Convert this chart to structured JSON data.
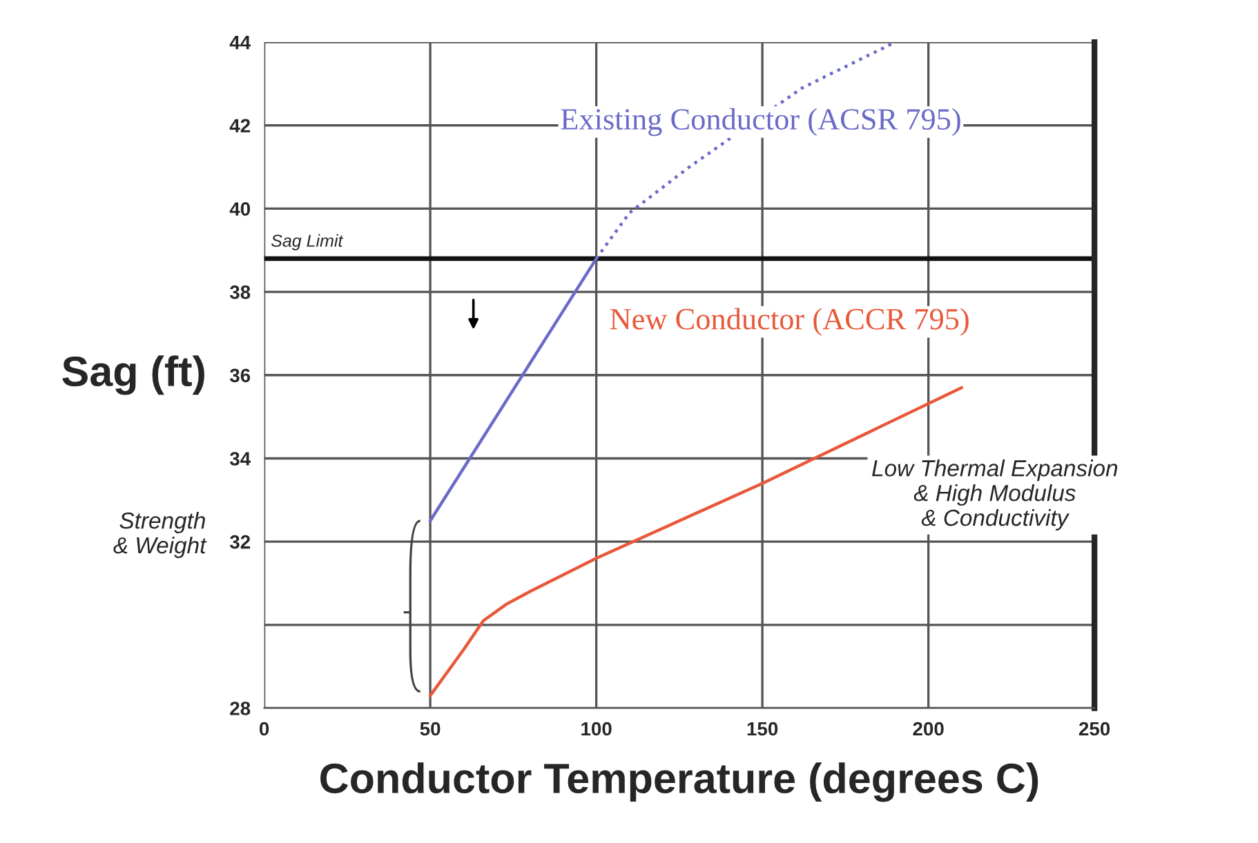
{
  "chart_data": {
    "type": "line",
    "xlabel": "Conductor Temperature (degrees C)",
    "ylabel": "Sag (ft)",
    "series": [
      {
        "name": "Existing Conductor (ACSR 795)",
        "color": "#6a6ac8",
        "x": [
          50,
          100
        ],
        "values": [
          32.5,
          38.8
        ],
        "line_style": "solid"
      },
      {
        "color": "#6a6ac8",
        "x": [
          100,
          110,
          128,
          162,
          190
        ],
        "values": [
          38.8,
          39.9,
          41.0,
          42.9,
          44.0
        ],
        "line_style": "dotted"
      },
      {
        "name": "New Conductor (ACCR 795)",
        "color": "#e8583a",
        "x": [
          50,
          60,
          66,
          73,
          80,
          100,
          150,
          210
        ],
        "values": [
          28.3,
          29.4,
          30.1,
          30.5,
          30.8,
          31.6,
          33.4,
          35.7
        ],
        "line_style": "solid"
      }
    ],
    "xlim": [
      0,
      250
    ],
    "xticks": [
      0,
      50,
      100,
      150,
      200,
      250
    ],
    "ylim": [
      28,
      44
    ],
    "yticks": [
      28,
      {
        "value": 30,
        "label": null
      },
      32,
      34,
      36,
      38,
      40,
      42,
      44
    ],
    "ref_lines": [
      {
        "axis": "y",
        "value": 38.8,
        "label": "Sag Limit",
        "color": "#111111"
      }
    ],
    "annotations": [
      "Strength\n& Weight",
      "Low Thermal Expansion\n& High Modulus\n& Conductivity"
    ],
    "grid": true,
    "marker": "none"
  }
}
